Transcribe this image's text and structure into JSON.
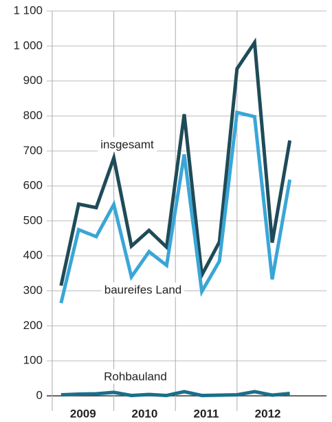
{
  "chart_data": {
    "type": "line",
    "categories": [
      null,
      null,
      null,
      null,
      null,
      null,
      null,
      null,
      null,
      null,
      null,
      null,
      null,
      null
    ],
    "year_groups": [
      "2009",
      "2010",
      "2011",
      "2012"
    ],
    "series": [
      {
        "name": "insgesamt",
        "color": "#1f4b58",
        "values": [
          315,
          548,
          538,
          680,
          428,
          473,
          425,
          805,
          345,
          440,
          935,
          1010,
          438,
          730
        ]
      },
      {
        "name": "baureifes Land",
        "color": "#3aa6d6",
        "values": [
          265,
          475,
          455,
          547,
          340,
          412,
          373,
          690,
          298,
          385,
          810,
          798,
          333,
          618
        ]
      },
      {
        "name": "Rohbauland",
        "color": "#1a6f8a",
        "values": [
          3,
          5,
          6,
          10,
          1,
          4,
          1,
          12,
          1,
          2,
          3,
          12,
          2,
          7
        ]
      }
    ],
    "ylim": [
      0,
      1100
    ],
    "yticks": [
      0,
      100,
      200,
      300,
      400,
      500,
      600,
      700,
      800,
      900,
      {
        "value": 1000,
        "label": "1 000"
      },
      {
        "value": 1100,
        "label": "1 100"
      }
    ],
    "grid": true
  }
}
